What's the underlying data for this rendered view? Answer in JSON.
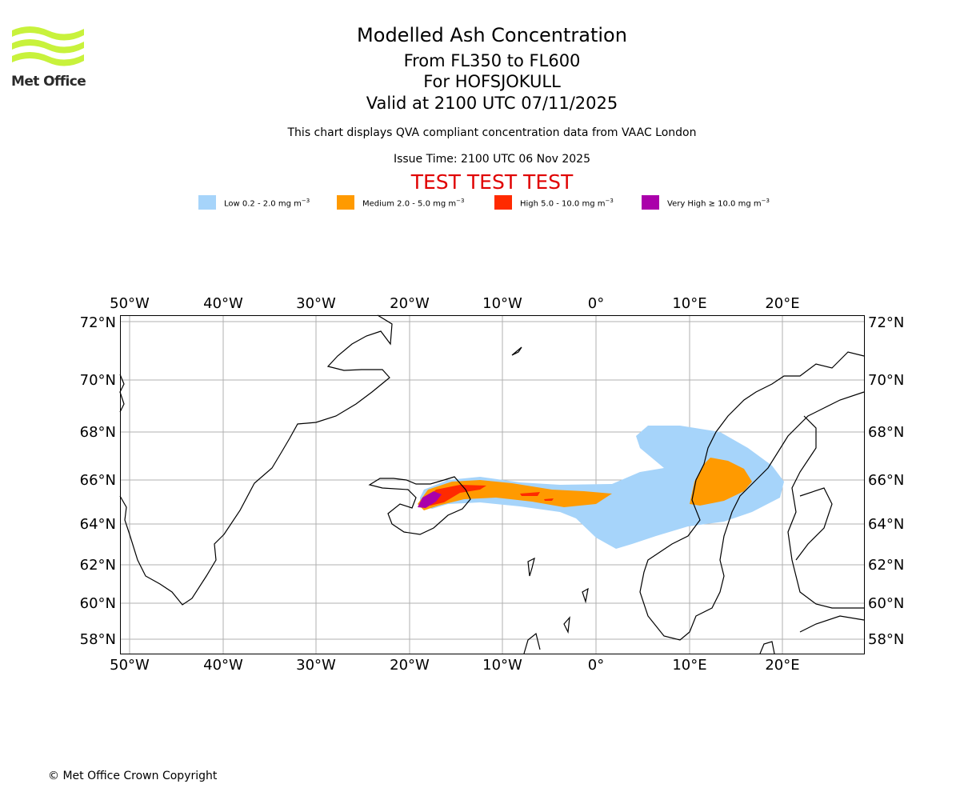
{
  "logo": {
    "text": "Met Office"
  },
  "header": {
    "title": "Modelled Ash Concentration",
    "levels": "From FL350 to FL600",
    "volcano": "For HOFSJOKULL",
    "valid": "Valid at 2100 UTC 07/11/2025",
    "subtitle": "This chart displays QVA compliant concentration data from VAAC London",
    "issue_time": "Issue Time: 2100 UTC 06 Nov 2025",
    "test_banner": "TEST TEST TEST"
  },
  "legend": [
    {
      "label_main": "Low 0.2 - 2.0 mg m",
      "sup": "−3",
      "color": "#a6d4fa"
    },
    {
      "label_main": "Medium 2.0 - 5.0 mg m",
      "sup": "−3",
      "color": "#ff9a00"
    },
    {
      "label_main": "High 5.0 - 10.0 mg m",
      "sup": "−3",
      "color": "#ff2a00"
    },
    {
      "label_main": "Very High ≥ 10.0 mg m",
      "sup": "−3",
      "color": "#aa00aa"
    }
  ],
  "map": {
    "lon_labels": [
      "50°W",
      "40°W",
      "30°W",
      "20°W",
      "10°W",
      "0°",
      "10°E",
      "20°E"
    ],
    "lat_labels": [
      "72°N",
      "70°N",
      "68°N",
      "66°N",
      "64°N",
      "62°N",
      "60°N",
      "58°N"
    ],
    "gridline_color": "#b0b0b0"
  },
  "footer": {
    "copyright": "© Met Office Crown Copyright"
  }
}
